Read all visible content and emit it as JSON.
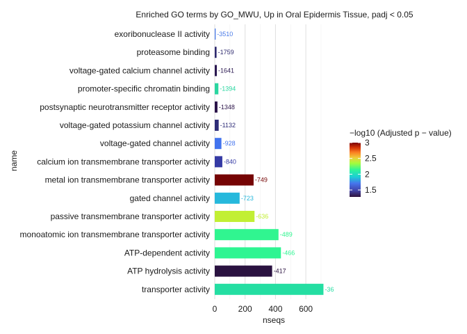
{
  "chart_data": {
    "type": "bar",
    "orientation": "horizontal",
    "title": "Enriched GO terms by GO_MWU, Up in Oral Epidermis Tissue, padj < 0.05",
    "xlabel": "nseqs",
    "ylabel": "name",
    "xlim": [
      0,
      720
    ],
    "xticks": [
      "0",
      "200",
      "400",
      "600"
    ],
    "xtick_values": [
      0,
      200,
      400,
      600
    ],
    "grid": "vertical major gridlines",
    "legend": {
      "title": "−log10 (Adjusted p − value)",
      "placement": "right",
      "ticks": [
        "3",
        "2.5",
        "2",
        "1.5"
      ],
      "tick_values": [
        3,
        2.5,
        2,
        1.5
      ],
      "range": [
        1.28,
        3.0
      ],
      "palette": "turbo"
    },
    "bars": [
      {
        "category": "exoribonuclease II activity",
        "value": 6,
        "label": "-3510",
        "color": "#4a7be8"
      },
      {
        "category": "proteasome binding",
        "value": 12,
        "label": "-1759",
        "color": "#2e2a6e"
      },
      {
        "category": "voltage-gated calcium channel activity",
        "value": 14,
        "label": "-1641",
        "color": "#2a1850"
      },
      {
        "category": "promoter-specific chromatin binding",
        "value": 24,
        "label": "-1394",
        "color": "#2ad6a0"
      },
      {
        "category": "postsynaptic neurotransmitter receptor activity",
        "value": 18,
        "label": "-1348",
        "color": "#2a1248"
      },
      {
        "category": "voltage-gated potassium channel activity",
        "value": 26,
        "label": "-1132",
        "color": "#2f2d78"
      },
      {
        "category": "voltage-gated channel activity",
        "value": 44,
        "label": "-928",
        "color": "#4273ee"
      },
      {
        "category": "calcium ion transmembrane transporter activity",
        "value": 50,
        "label": "-840",
        "color": "#353aa4"
      },
      {
        "category": "metal ion transmembrane transporter activity",
        "value": 256,
        "label": "-749",
        "color": "#750404"
      },
      {
        "category": "gated channel activity",
        "value": 164,
        "label": "-723",
        "color": "#26b8dc"
      },
      {
        "category": "passive transmembrane transporter activity",
        "value": 262,
        "label": "-636",
        "color": "#c2ef34"
      },
      {
        "category": "monoatomic ion transmembrane transporter activity",
        "value": 420,
        "label": "-489",
        "color": "#30f590"
      },
      {
        "category": "ATP-dependent activity",
        "value": 436,
        "label": "-466",
        "color": "#2ef592"
      },
      {
        "category": "ATP hydrolysis activity",
        "value": 378,
        "label": "-417",
        "color": "#2a1240"
      },
      {
        "category": "transporter activity",
        "value": 716,
        "label": "-36",
        "color": "#24dea2"
      }
    ]
  }
}
